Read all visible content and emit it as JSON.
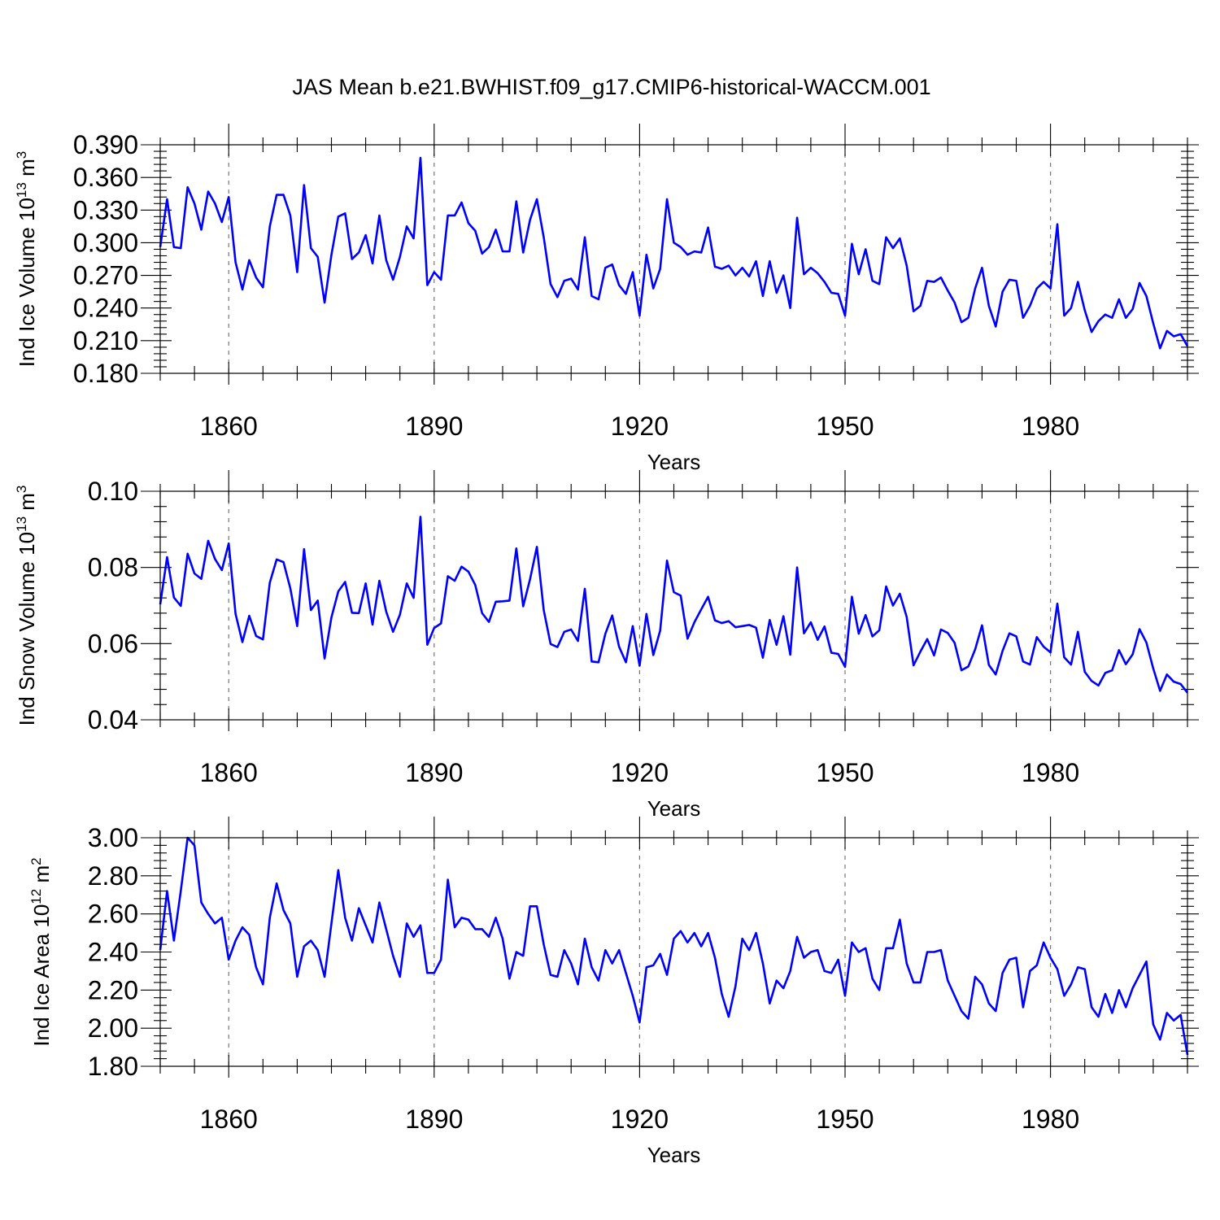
{
  "figure": {
    "title": "JAS Mean b.e21.BWHIST.f09_g17.CMIP6-historical-WACCM.001"
  },
  "chart_data": [
    {
      "type": "line",
      "title": "JAS Mean b.e21.BWHIST.f09_g17.CMIP6-historical-WACCM.001",
      "xlabel": "Years",
      "ylabel_main": "Ind Ice Volume 10",
      "ylabel_exp": "13",
      "ylabel_unit": " m",
      "ylabel_unit_exp": "3",
      "xlim": [
        1850,
        2000
      ],
      "ylim": [
        0.18,
        0.39
      ],
      "xticks": [
        1860,
        1890,
        1920,
        1950,
        1980
      ],
      "xtick_labels": [
        "1860",
        "1890",
        "1920",
        "1950",
        "1980"
      ],
      "yticks": [
        0.18,
        0.21,
        0.24,
        0.27,
        0.3,
        0.33,
        0.36,
        0.39
      ],
      "ytick_labels": [
        "0.180",
        "0.210",
        "0.240",
        "0.270",
        "0.300",
        "0.330",
        "0.360",
        "0.390"
      ],
      "grid": "vertical dashed at major x ticks",
      "series": [
        {
          "name": "Ind Ice Volume",
          "color": "#0000ff",
          "x_start": 1850,
          "values": [
            0.296,
            0.34,
            0.296,
            0.295,
            0.351,
            0.336,
            0.312,
            0.347,
            0.336,
            0.319,
            0.342,
            0.282,
            0.257,
            0.284,
            0.268,
            0.259,
            0.315,
            0.344,
            0.344,
            0.325,
            0.273,
            0.353,
            0.295,
            0.287,
            0.245,
            0.289,
            0.324,
            0.327,
            0.285,
            0.291,
            0.307,
            0.281,
            0.325,
            0.284,
            0.266,
            0.287,
            0.315,
            0.304,
            0.378,
            0.261,
            0.273,
            0.266,
            0.325,
            0.325,
            0.337,
            0.318,
            0.311,
            0.29,
            0.296,
            0.312,
            0.292,
            0.292,
            0.338,
            0.291,
            0.321,
            0.34,
            0.305,
            0.262,
            0.25,
            0.265,
            0.267,
            0.257,
            0.305,
            0.251,
            0.248,
            0.277,
            0.28,
            0.261,
            0.253,
            0.273,
            0.233,
            0.289,
            0.258,
            0.276,
            0.34,
            0.3,
            0.296,
            0.289,
            0.292,
            0.291,
            0.314,
            0.278,
            0.276,
            0.279,
            0.27,
            0.277,
            0.269,
            0.283,
            0.251,
            0.283,
            0.254,
            0.27,
            0.24,
            0.323,
            0.271,
            0.277,
            0.272,
            0.264,
            0.254,
            0.253,
            0.233,
            0.299,
            0.271,
            0.294,
            0.265,
            0.262,
            0.305,
            0.295,
            0.304,
            0.279,
            0.237,
            0.242,
            0.265,
            0.264,
            0.268,
            0.256,
            0.245,
            0.227,
            0.231,
            0.258,
            0.277,
            0.242,
            0.223,
            0.255,
            0.266,
            0.265,
            0.231,
            0.242,
            0.258,
            0.264,
            0.258,
            0.317,
            0.233,
            0.24,
            0.264,
            0.238,
            0.218,
            0.228,
            0.234,
            0.231,
            0.248,
            0.231,
            0.239,
            0.263,
            0.251,
            0.226,
            0.203,
            0.219,
            0.214,
            0.216,
            0.205
          ]
        }
      ]
    },
    {
      "type": "line",
      "xlabel": "Years",
      "ylabel_main": "Ind Snow Volume 10",
      "ylabel_exp": "13",
      "ylabel_unit": " m",
      "ylabel_unit_exp": "3",
      "xlim": [
        1850,
        2000
      ],
      "ylim": [
        0.04,
        0.1
      ],
      "xticks": [
        1860,
        1890,
        1920,
        1950,
        1980
      ],
      "xtick_labels": [
        "1860",
        "1890",
        "1920",
        "1950",
        "1980"
      ],
      "yticks": [
        0.04,
        0.06,
        0.08,
        0.1
      ],
      "ytick_labels": [
        "0.04",
        "0.06",
        "0.08",
        "0.10"
      ],
      "grid": "vertical dashed at major x ticks",
      "series": [
        {
          "name": "Ind Snow Volume",
          "color": "#0000ff",
          "x_start": 1850,
          "values": [
            0.0703,
            0.0827,
            0.0721,
            0.0699,
            0.0836,
            0.0784,
            0.077,
            0.087,
            0.0822,
            0.0793,
            0.0863,
            0.0678,
            0.0604,
            0.0673,
            0.062,
            0.0611,
            0.076,
            0.0821,
            0.0814,
            0.0745,
            0.0646,
            0.0848,
            0.0688,
            0.0713,
            0.0561,
            0.0669,
            0.0737,
            0.0762,
            0.0681,
            0.068,
            0.0758,
            0.065,
            0.0765,
            0.0684,
            0.0631,
            0.0676,
            0.0758,
            0.072,
            0.0933,
            0.0597,
            0.0641,
            0.0653,
            0.0777,
            0.0765,
            0.0802,
            0.0789,
            0.0754,
            0.068,
            0.0657,
            0.071,
            0.0711,
            0.0713,
            0.085,
            0.0698,
            0.0769,
            0.0854,
            0.0688,
            0.0599,
            0.0591,
            0.0631,
            0.0637,
            0.0607,
            0.0744,
            0.0553,
            0.0551,
            0.0626,
            0.0674,
            0.0592,
            0.0551,
            0.0646,
            0.0542,
            0.0678,
            0.057,
            0.0634,
            0.0818,
            0.0735,
            0.0726,
            0.0613,
            0.0656,
            0.069,
            0.0723,
            0.0661,
            0.0654,
            0.0659,
            0.0643,
            0.0646,
            0.0649,
            0.0642,
            0.0563,
            0.0662,
            0.0597,
            0.0672,
            0.0571,
            0.08,
            0.0627,
            0.0656,
            0.061,
            0.0645,
            0.0576,
            0.0573,
            0.0539,
            0.0723,
            0.0626,
            0.0675,
            0.0619,
            0.0635,
            0.075,
            0.07,
            0.0731,
            0.067,
            0.0543,
            0.0579,
            0.0612,
            0.0569,
            0.0637,
            0.0628,
            0.0602,
            0.053,
            0.054,
            0.0585,
            0.0648,
            0.0544,
            0.0519,
            0.0581,
            0.0627,
            0.0619,
            0.0553,
            0.0545,
            0.0617,
            0.0592,
            0.0577,
            0.0705,
            0.0564,
            0.0545,
            0.0631,
            0.0526,
            0.0502,
            0.049,
            0.0523,
            0.053,
            0.0583,
            0.0546,
            0.0572,
            0.0638,
            0.0603,
            0.0535,
            0.0476,
            0.0519,
            0.05,
            0.0494,
            0.0471
          ]
        }
      ]
    },
    {
      "type": "line",
      "xlabel": "Years",
      "ylabel_main": "Ind Ice Area 10",
      "ylabel_exp": "12",
      "ylabel_unit": " m",
      "ylabel_unit_exp": "2",
      "xlim": [
        1850,
        2000
      ],
      "ylim": [
        1.8,
        3.0
      ],
      "xticks": [
        1860,
        1890,
        1920,
        1950,
        1980
      ],
      "xtick_labels": [
        "1860",
        "1890",
        "1920",
        "1950",
        "1980"
      ],
      "yticks": [
        1.8,
        2.0,
        2.2,
        2.4,
        2.6,
        2.8,
        3.0
      ],
      "ytick_labels": [
        "1.80",
        "2.00",
        "2.20",
        "2.40",
        "2.60",
        "2.80",
        "3.00"
      ],
      "grid": "vertical dashed at major x ticks",
      "series": [
        {
          "name": "Ind Ice Area",
          "color": "#0000ff",
          "x_start": 1850,
          "values": [
            2.41,
            2.72,
            2.46,
            2.72,
            3.0,
            2.96,
            2.66,
            2.6,
            2.55,
            2.58,
            2.36,
            2.46,
            2.53,
            2.49,
            2.32,
            2.23,
            2.58,
            2.76,
            2.62,
            2.55,
            2.27,
            2.43,
            2.46,
            2.41,
            2.27,
            2.55,
            2.83,
            2.58,
            2.46,
            2.63,
            2.54,
            2.45,
            2.66,
            2.52,
            2.38,
            2.27,
            2.55,
            2.48,
            2.54,
            2.29,
            2.29,
            2.36,
            2.78,
            2.53,
            2.58,
            2.57,
            2.52,
            2.52,
            2.48,
            2.58,
            2.47,
            2.26,
            2.4,
            2.38,
            2.64,
            2.64,
            2.44,
            2.28,
            2.27,
            2.41,
            2.34,
            2.23,
            2.47,
            2.32,
            2.25,
            2.41,
            2.34,
            2.41,
            2.29,
            2.17,
            2.03,
            2.32,
            2.33,
            2.39,
            2.28,
            2.47,
            2.51,
            2.45,
            2.5,
            2.43,
            2.5,
            2.37,
            2.18,
            2.06,
            2.22,
            2.47,
            2.41,
            2.5,
            2.34,
            2.13,
            2.25,
            2.21,
            2.3,
            2.48,
            2.37,
            2.4,
            2.41,
            2.3,
            2.29,
            2.36,
            2.17,
            2.45,
            2.4,
            2.42,
            2.26,
            2.2,
            2.42,
            2.42,
            2.57,
            2.34,
            2.24,
            2.24,
            2.4,
            2.4,
            2.41,
            2.25,
            2.17,
            2.09,
            2.05,
            2.27,
            2.23,
            2.13,
            2.09,
            2.29,
            2.36,
            2.37,
            2.11,
            2.3,
            2.33,
            2.45,
            2.37,
            2.31,
            2.17,
            2.23,
            2.32,
            2.31,
            2.11,
            2.06,
            2.18,
            2.08,
            2.2,
            2.11,
            2.21,
            2.28,
            2.35,
            2.02,
            1.94,
            2.08,
            2.04,
            2.07,
            1.86
          ]
        }
      ]
    }
  ]
}
